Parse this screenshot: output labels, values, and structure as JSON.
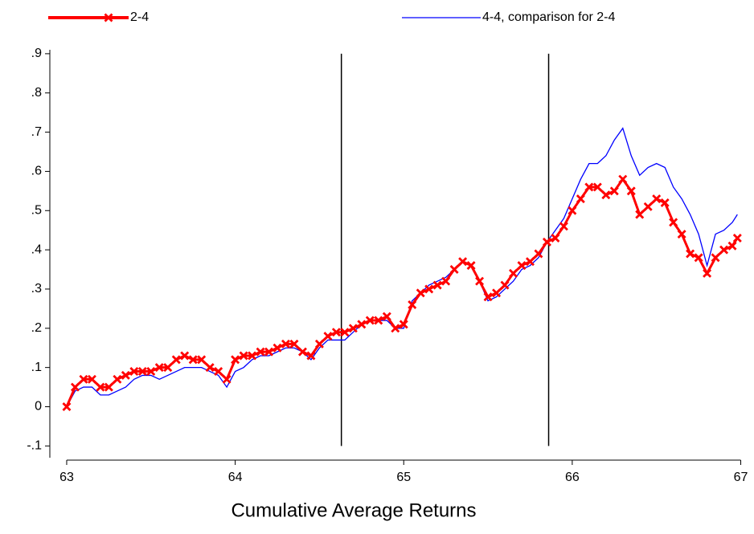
{
  "chart_data": {
    "type": "line",
    "title": "Cumulative Average Returns",
    "x": [
      63,
      63.05,
      63.1,
      63.15,
      63.2,
      63.25,
      63.3,
      63.35,
      63.4,
      63.45,
      63.5,
      63.55,
      63.6,
      63.65,
      63.7,
      63.75,
      63.8,
      63.85,
      63.9,
      63.95,
      64,
      64.05,
      64.1,
      64.15,
      64.2,
      64.25,
      64.3,
      64.35,
      64.4,
      64.45,
      64.5,
      64.55,
      64.6,
      64.65,
      64.7,
      64.75,
      64.8,
      64.85,
      64.9,
      64.95,
      65,
      65.05,
      65.1,
      65.15,
      65.2,
      65.25,
      65.3,
      65.35,
      65.4,
      65.45,
      65.5,
      65.55,
      65.6,
      65.65,
      65.7,
      65.75,
      65.8,
      65.85,
      65.9,
      65.95,
      66,
      66.05,
      66.1,
      66.15,
      66.2,
      66.25,
      66.3,
      66.35,
      66.4,
      66.45,
      66.5,
      66.55,
      66.6,
      66.65,
      66.7,
      66.75,
      66.8,
      66.85,
      66.9,
      66.95,
      66.98
    ],
    "series": [
      {
        "name": "2-4",
        "color": "#ff0000",
        "marker": "x",
        "values": [
          0,
          0.05,
          0.07,
          0.07,
          0.05,
          0.05,
          0.07,
          0.08,
          0.09,
          0.09,
          0.09,
          0.1,
          0.1,
          0.12,
          0.13,
          0.12,
          0.12,
          0.1,
          0.09,
          0.07,
          0.12,
          0.13,
          0.13,
          0.14,
          0.14,
          0.15,
          0.16,
          0.16,
          0.14,
          0.13,
          0.16,
          0.18,
          0.19,
          0.19,
          0.2,
          0.21,
          0.22,
          0.22,
          0.23,
          0.2,
          0.21,
          0.26,
          0.29,
          0.3,
          0.31,
          0.32,
          0.35,
          0.37,
          0.36,
          0.32,
          0.28,
          0.29,
          0.31,
          0.34,
          0.36,
          0.37,
          0.39,
          0.42,
          0.43,
          0.46,
          0.5,
          0.53,
          0.56,
          0.56,
          0.54,
          0.55,
          0.58,
          0.55,
          0.49,
          0.51,
          0.53,
          0.52,
          0.47,
          0.44,
          0.39,
          0.38,
          0.34,
          0.38,
          0.4,
          0.41,
          0.43
        ]
      },
      {
        "name": "4-4, comparison for 2-4",
        "color": "#0000ff",
        "values": [
          0,
          0.04,
          0.05,
          0.05,
          0.03,
          0.03,
          0.04,
          0.05,
          0.07,
          0.08,
          0.08,
          0.07,
          0.08,
          0.09,
          0.1,
          0.1,
          0.1,
          0.09,
          0.08,
          0.05,
          0.09,
          0.1,
          0.12,
          0.13,
          0.13,
          0.14,
          0.15,
          0.15,
          0.14,
          0.12,
          0.15,
          0.17,
          0.17,
          0.17,
          0.19,
          0.21,
          0.22,
          0.22,
          0.22,
          0.2,
          0.2,
          0.27,
          0.29,
          0.31,
          0.32,
          0.33,
          0.35,
          0.37,
          0.36,
          0.32,
          0.27,
          0.28,
          0.3,
          0.32,
          0.35,
          0.36,
          0.38,
          0.42,
          0.45,
          0.48,
          0.53,
          0.58,
          0.62,
          0.62,
          0.64,
          0.68,
          0.71,
          0.64,
          0.59,
          0.61,
          0.62,
          0.61,
          0.56,
          0.53,
          0.49,
          0.44,
          0.36,
          0.44,
          0.45,
          0.47,
          0.49
        ]
      }
    ],
    "xlim": [
      62.9,
      67.05
    ],
    "xticks": [
      63,
      64,
      65,
      66,
      67
    ],
    "ylim": [
      -0.13,
      0.91
    ],
    "yticks": [
      {
        "value": -0.1,
        "label": "-.1"
      },
      0,
      {
        "value": 0.1,
        "label": ".1"
      },
      {
        "value": 0.2,
        "label": ".2"
      },
      {
        "value": 0.3,
        "label": ".3"
      },
      {
        "value": 0.4,
        "label": ".4"
      },
      {
        "value": 0.5,
        "label": ".5"
      },
      {
        "value": 0.6,
        "label": ".6"
      },
      {
        "value": 0.7,
        "label": ".7"
      },
      {
        "value": 0.8,
        "label": ".8"
      },
      {
        "value": 0.9,
        "label": ".9"
      }
    ],
    "vlines": [
      64.63,
      65.86
    ],
    "grid": false,
    "legend": "top"
  }
}
